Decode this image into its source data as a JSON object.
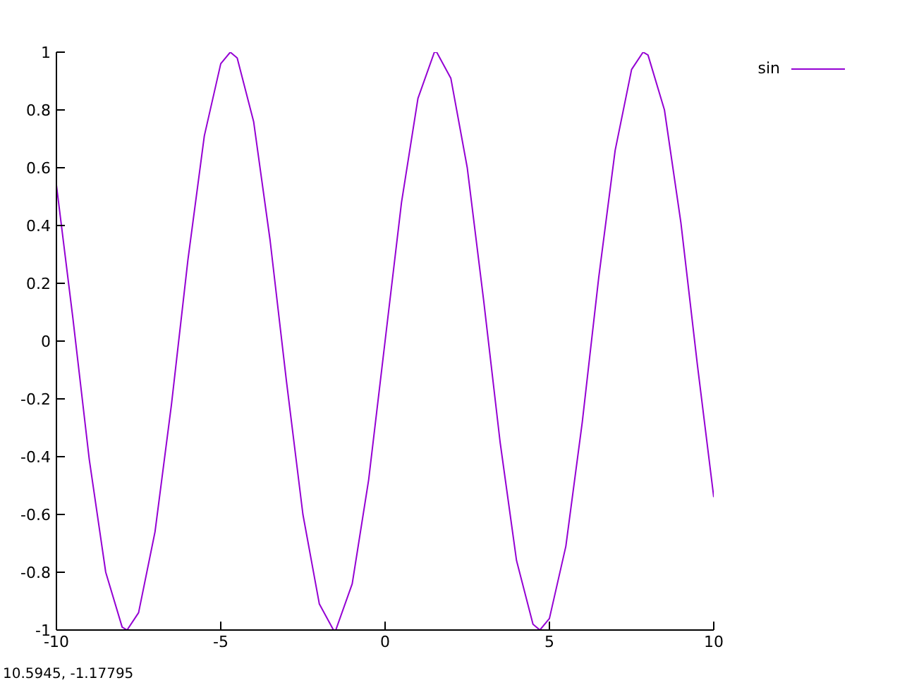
{
  "chart_data": {
    "type": "line",
    "x": [
      -10,
      -9.5,
      -9,
      -8.5,
      -8,
      -7.85,
      -7.5,
      -7,
      -6.5,
      -6,
      -5.5,
      -5,
      -4.71,
      -4.5,
      -4,
      -3.5,
      -3,
      -2.5,
      -2,
      -1.57,
      -1.5,
      -1,
      -0.5,
      0,
      0.5,
      1,
      1.5,
      1.57,
      2,
      2.5,
      3,
      3.5,
      4,
      4.5,
      4.71,
      5,
      5.5,
      6,
      6.5,
      7,
      7.5,
      7.85,
      8,
      8.5,
      9,
      9.5,
      10
    ],
    "series": [
      {
        "name": "sin",
        "color": "#9400d3",
        "values": [
          0.54,
          0.08,
          -0.41,
          -0.8,
          -0.99,
          -1,
          -0.94,
          -0.66,
          -0.22,
          0.28,
          0.71,
          0.96,
          1,
          0.98,
          0.76,
          0.35,
          -0.14,
          -0.6,
          -0.91,
          -1,
          -1,
          -0.84,
          -0.48,
          0,
          0.48,
          0.84,
          1,
          1,
          0.91,
          0.6,
          0.14,
          -0.35,
          -0.76,
          -0.98,
          -1,
          -0.96,
          -0.71,
          -0.28,
          0.22,
          0.66,
          0.94,
          1,
          0.99,
          0.8,
          0.41,
          -0.08,
          -0.54
        ]
      }
    ],
    "xlim": [
      -10,
      10
    ],
    "xticks": [
      -10,
      -5,
      0,
      5,
      10
    ],
    "ylim": [
      -1,
      1
    ],
    "yticks": [
      -1,
      -0.8,
      -0.6,
      -0.4,
      -0.2,
      0,
      0.2,
      0.4,
      0.6,
      0.8,
      1
    ],
    "legend": "top right",
    "grid": false,
    "marker": "none",
    "line_style": "solid",
    "annotations": [
      "10.5945, -1.17795"
    ]
  }
}
